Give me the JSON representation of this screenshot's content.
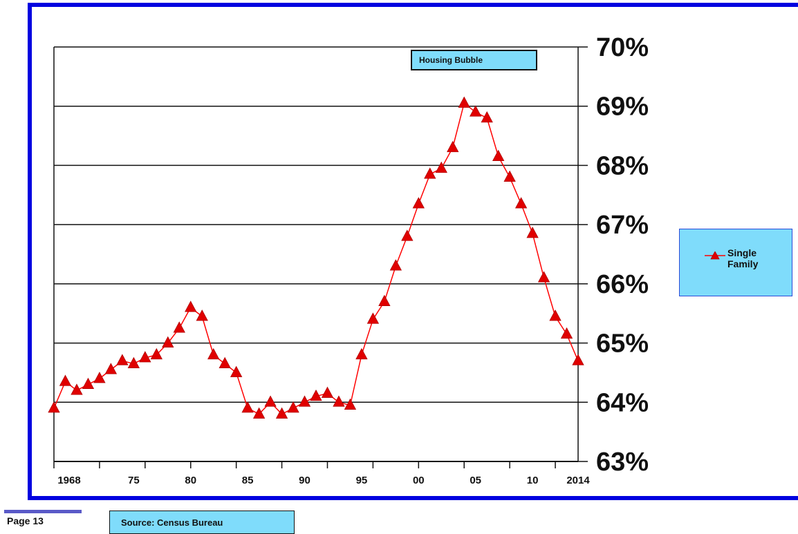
{
  "chart_data": {
    "type": "line",
    "title": "",
    "xlabel": "",
    "ylabel": "",
    "ylim": [
      63,
      70
    ],
    "xlim": [
      1968,
      2014
    ],
    "y_ticks": [
      "63%",
      "64%",
      "65%",
      "66%",
      "67%",
      "68%",
      "69%",
      "70%"
    ],
    "y_tick_values": [
      63,
      64,
      65,
      66,
      67,
      68,
      69,
      70
    ],
    "x_ticks": [
      "1968",
      "75",
      "80",
      "85",
      "90",
      "95",
      "00",
      "05",
      "10",
      "2014"
    ],
    "x_tick_years": [
      1968,
      1975,
      1980,
      1985,
      1990,
      1995,
      2000,
      2005,
      2010,
      2014
    ],
    "x_major_years": [
      1968,
      1972,
      1976,
      1980,
      1984,
      1988,
      1992,
      1996,
      2000,
      2004,
      2008,
      2012
    ],
    "grid": "horizontal",
    "legend_position": "right",
    "series": [
      {
        "name": "Single Family",
        "color": "#ff0000",
        "marker_color": "#e00000",
        "x": [
          1968,
          1969,
          1970,
          1971,
          1972,
          1973,
          1974,
          1975,
          1976,
          1977,
          1978,
          1979,
          1980,
          1981,
          1982,
          1983,
          1984,
          1985,
          1986,
          1987,
          1988,
          1989,
          1990,
          1991,
          1992,
          1993,
          1994,
          1995,
          1996,
          1997,
          1998,
          1999,
          2000,
          2001,
          2002,
          2003,
          2004,
          2005,
          2006,
          2007,
          2008,
          2009,
          2010,
          2011,
          2012,
          2013,
          2014
        ],
        "values": [
          63.9,
          64.35,
          64.2,
          64.3,
          64.4,
          64.55,
          64.7,
          64.65,
          64.75,
          64.8,
          65.0,
          65.25,
          65.6,
          65.45,
          64.8,
          64.65,
          64.5,
          63.9,
          63.8,
          64.0,
          63.8,
          63.9,
          64.0,
          64.1,
          64.15,
          64.0,
          63.95,
          64.8,
          65.4,
          65.7,
          66.3,
          66.8,
          67.35,
          67.85,
          67.95,
          68.3,
          69.05,
          68.9,
          68.8,
          68.15,
          67.8,
          67.35,
          66.85,
          66.1,
          65.45,
          65.15,
          64.7
        ]
      }
    ]
  },
  "legend": {
    "label": "Single Family"
  },
  "annotation": {
    "text": "Housing Bubble"
  },
  "footer": {
    "page": "Page 13",
    "source": "Source: Census Bureau"
  }
}
